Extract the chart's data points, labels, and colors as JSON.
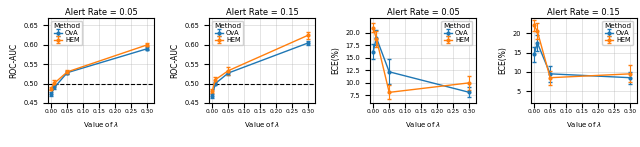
{
  "x_values": [
    0.0,
    0.01,
    0.05,
    0.3
  ],
  "x_ticks": [
    0.0,
    0.05,
    0.1,
    0.15,
    0.2,
    0.25,
    0.3
  ],
  "x_tick_labels": [
    "0.00",
    "0.05",
    "0.10",
    "0.15",
    "0.20",
    "0.25",
    "0.30"
  ],
  "panel1": {
    "title": "Alert Rate = 0.05",
    "ylabel": "ROC-AUC",
    "ylim": [
      0.45,
      0.67
    ],
    "yticks": [
      0.45,
      0.5,
      0.55,
      0.6,
      0.65
    ],
    "hline": 0.5,
    "legend_loc": "upper left",
    "ova_mean": [
      0.473,
      0.49,
      0.528,
      0.59
    ],
    "ova_err": [
      0.006,
      0.005,
      0.004,
      0.004
    ],
    "hem_mean": [
      0.487,
      0.501,
      0.53,
      0.6
    ],
    "hem_err": [
      0.005,
      0.007,
      0.006,
      0.004
    ]
  },
  "panel2": {
    "title": "Alert Rate = 0.15",
    "ylabel": "ROC-AUC",
    "ylim": [
      0.45,
      0.67
    ],
    "yticks": [
      0.45,
      0.5,
      0.55,
      0.6,
      0.65
    ],
    "hline": 0.5,
    "legend_loc": "upper left",
    "ova_mean": [
      0.468,
      0.5,
      0.527,
      0.605
    ],
    "ova_err": [
      0.006,
      0.004,
      0.005,
      0.006
    ],
    "hem_mean": [
      0.48,
      0.51,
      0.533,
      0.625
    ],
    "hem_err": [
      0.005,
      0.008,
      0.01,
      0.009
    ]
  },
  "panel3": {
    "title": "Alert Rate = 0.05",
    "ylabel": "ECE(%)",
    "ylim": [
      6.0,
      23.0
    ],
    "yticks": [
      7.5,
      10.0,
      12.5,
      15.0,
      17.5,
      20.0
    ],
    "legend_loc": "upper right",
    "ova_mean": [
      16.2,
      19.0,
      12.2,
      8.1
    ],
    "ova_err": [
      1.5,
      1.5,
      2.5,
      1.0
    ],
    "hem_mean": [
      21.0,
      18.8,
      8.1,
      10.0
    ],
    "hem_err": [
      0.9,
      1.6,
      1.4,
      1.4
    ]
  },
  "panel4": {
    "title": "Alert Rate = 0.15",
    "ylabel": "ECE(%)",
    "ylim": [
      2.0,
      24.0
    ],
    "yticks": [
      5,
      10,
      15,
      20
    ],
    "legend_loc": "upper right",
    "ova_mean": [
      14.5,
      17.5,
      9.5,
      8.5
    ],
    "ova_err": [
      2.0,
      2.0,
      2.0,
      1.5
    ],
    "hem_mean": [
      22.0,
      20.5,
      8.5,
      9.5
    ],
    "hem_err": [
      1.5,
      2.0,
      1.8,
      2.2
    ]
  },
  "color_ova": "#1f77b4",
  "color_hem": "#ff7f0e",
  "legend_title": "Method",
  "legend_ova": "OvA",
  "legend_hem": "HEM"
}
